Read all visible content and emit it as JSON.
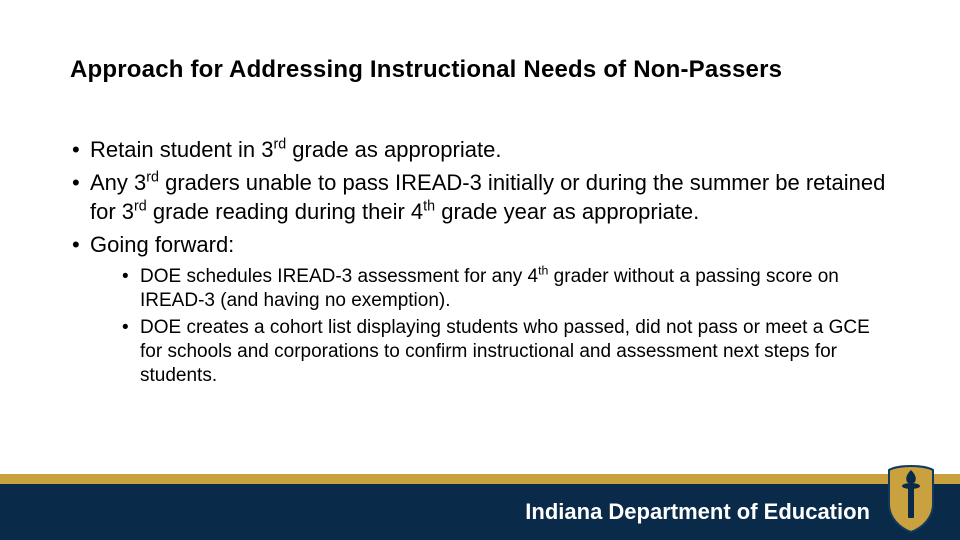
{
  "colors": {
    "background": "#ffffff",
    "text": "#000000",
    "footer_bg": "#0a2a4a",
    "footer_accent": "#c9a23f",
    "footer_text": "#ffffff"
  },
  "title": "Approach for Addressing Instructional Needs of Non-Passers",
  "bullets": [
    {
      "html": "Retain student in 3<sup>rd</sup> grade as appropriate."
    },
    {
      "html": "Any 3<sup>rd</sup> graders unable to pass IREAD-3 initially or during the summer be retained for 3<sup>rd</sup> grade reading during their 4<sup>th</sup> grade year as appropriate."
    },
    {
      "html": "Going forward:",
      "children": [
        {
          "html": "DOE schedules IREAD-3 assessment for any 4<sup>th</sup> grader without a passing score on IREAD-3 (and having no exemption)."
        },
        {
          "html": "DOE creates a cohort list displaying students who passed, did not pass or meet a GCE for schools and corporations to confirm instructional and assessment next steps for students."
        }
      ]
    }
  ],
  "footer": {
    "org_text": "Indiana Department of Education",
    "logo_alt": "Indiana torch shield logo"
  }
}
